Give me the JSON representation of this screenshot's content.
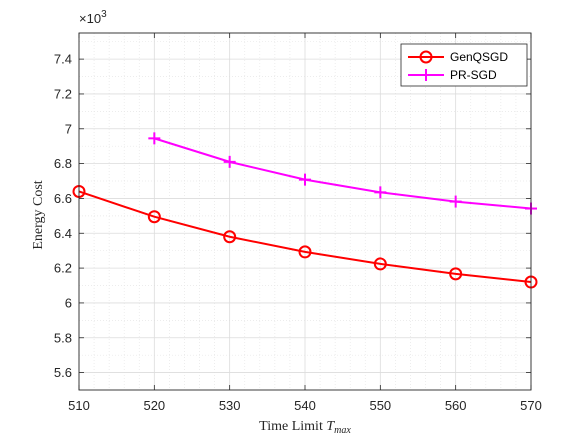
{
  "chart_data": {
    "type": "line",
    "xlabel_text": "Time Limit ",
    "xlabel_var": "T",
    "xlabel_sub": "max",
    "ylabel": "Energy Cost",
    "y_multiplier_base": "×10",
    "y_multiplier_exp": "3",
    "xlim": [
      510,
      570
    ],
    "ylim": [
      5.5,
      7.55
    ],
    "x_ticks": [
      510,
      520,
      530,
      540,
      550,
      560,
      570
    ],
    "y_ticks": [
      5.6,
      5.8,
      6,
      6.2,
      6.4,
      6.6,
      6.8,
      7,
      7.2,
      7.4
    ],
    "y_tick_labels": [
      "5.6",
      "5.8",
      "6",
      "6.2",
      "6.4",
      "6.6",
      "6.8",
      "7",
      "7.2",
      "7.4"
    ],
    "grid": true,
    "minor_grid": true,
    "legend_position": "top-right",
    "series": [
      {
        "name": "GenQSGD",
        "color": "#ff0000",
        "marker": "circle",
        "x": [
          510,
          520,
          530,
          540,
          550,
          560,
          570
        ],
        "values": [
          6.64,
          6.495,
          6.38,
          6.293,
          6.224,
          6.167,
          6.12
        ]
      },
      {
        "name": "PR-SGD",
        "color": "#ff00ff",
        "marker": "plus",
        "x": [
          520,
          530,
          540,
          550,
          560,
          570
        ],
        "values": [
          6.945,
          6.81,
          6.708,
          6.635,
          6.582,
          6.542
        ]
      }
    ]
  }
}
